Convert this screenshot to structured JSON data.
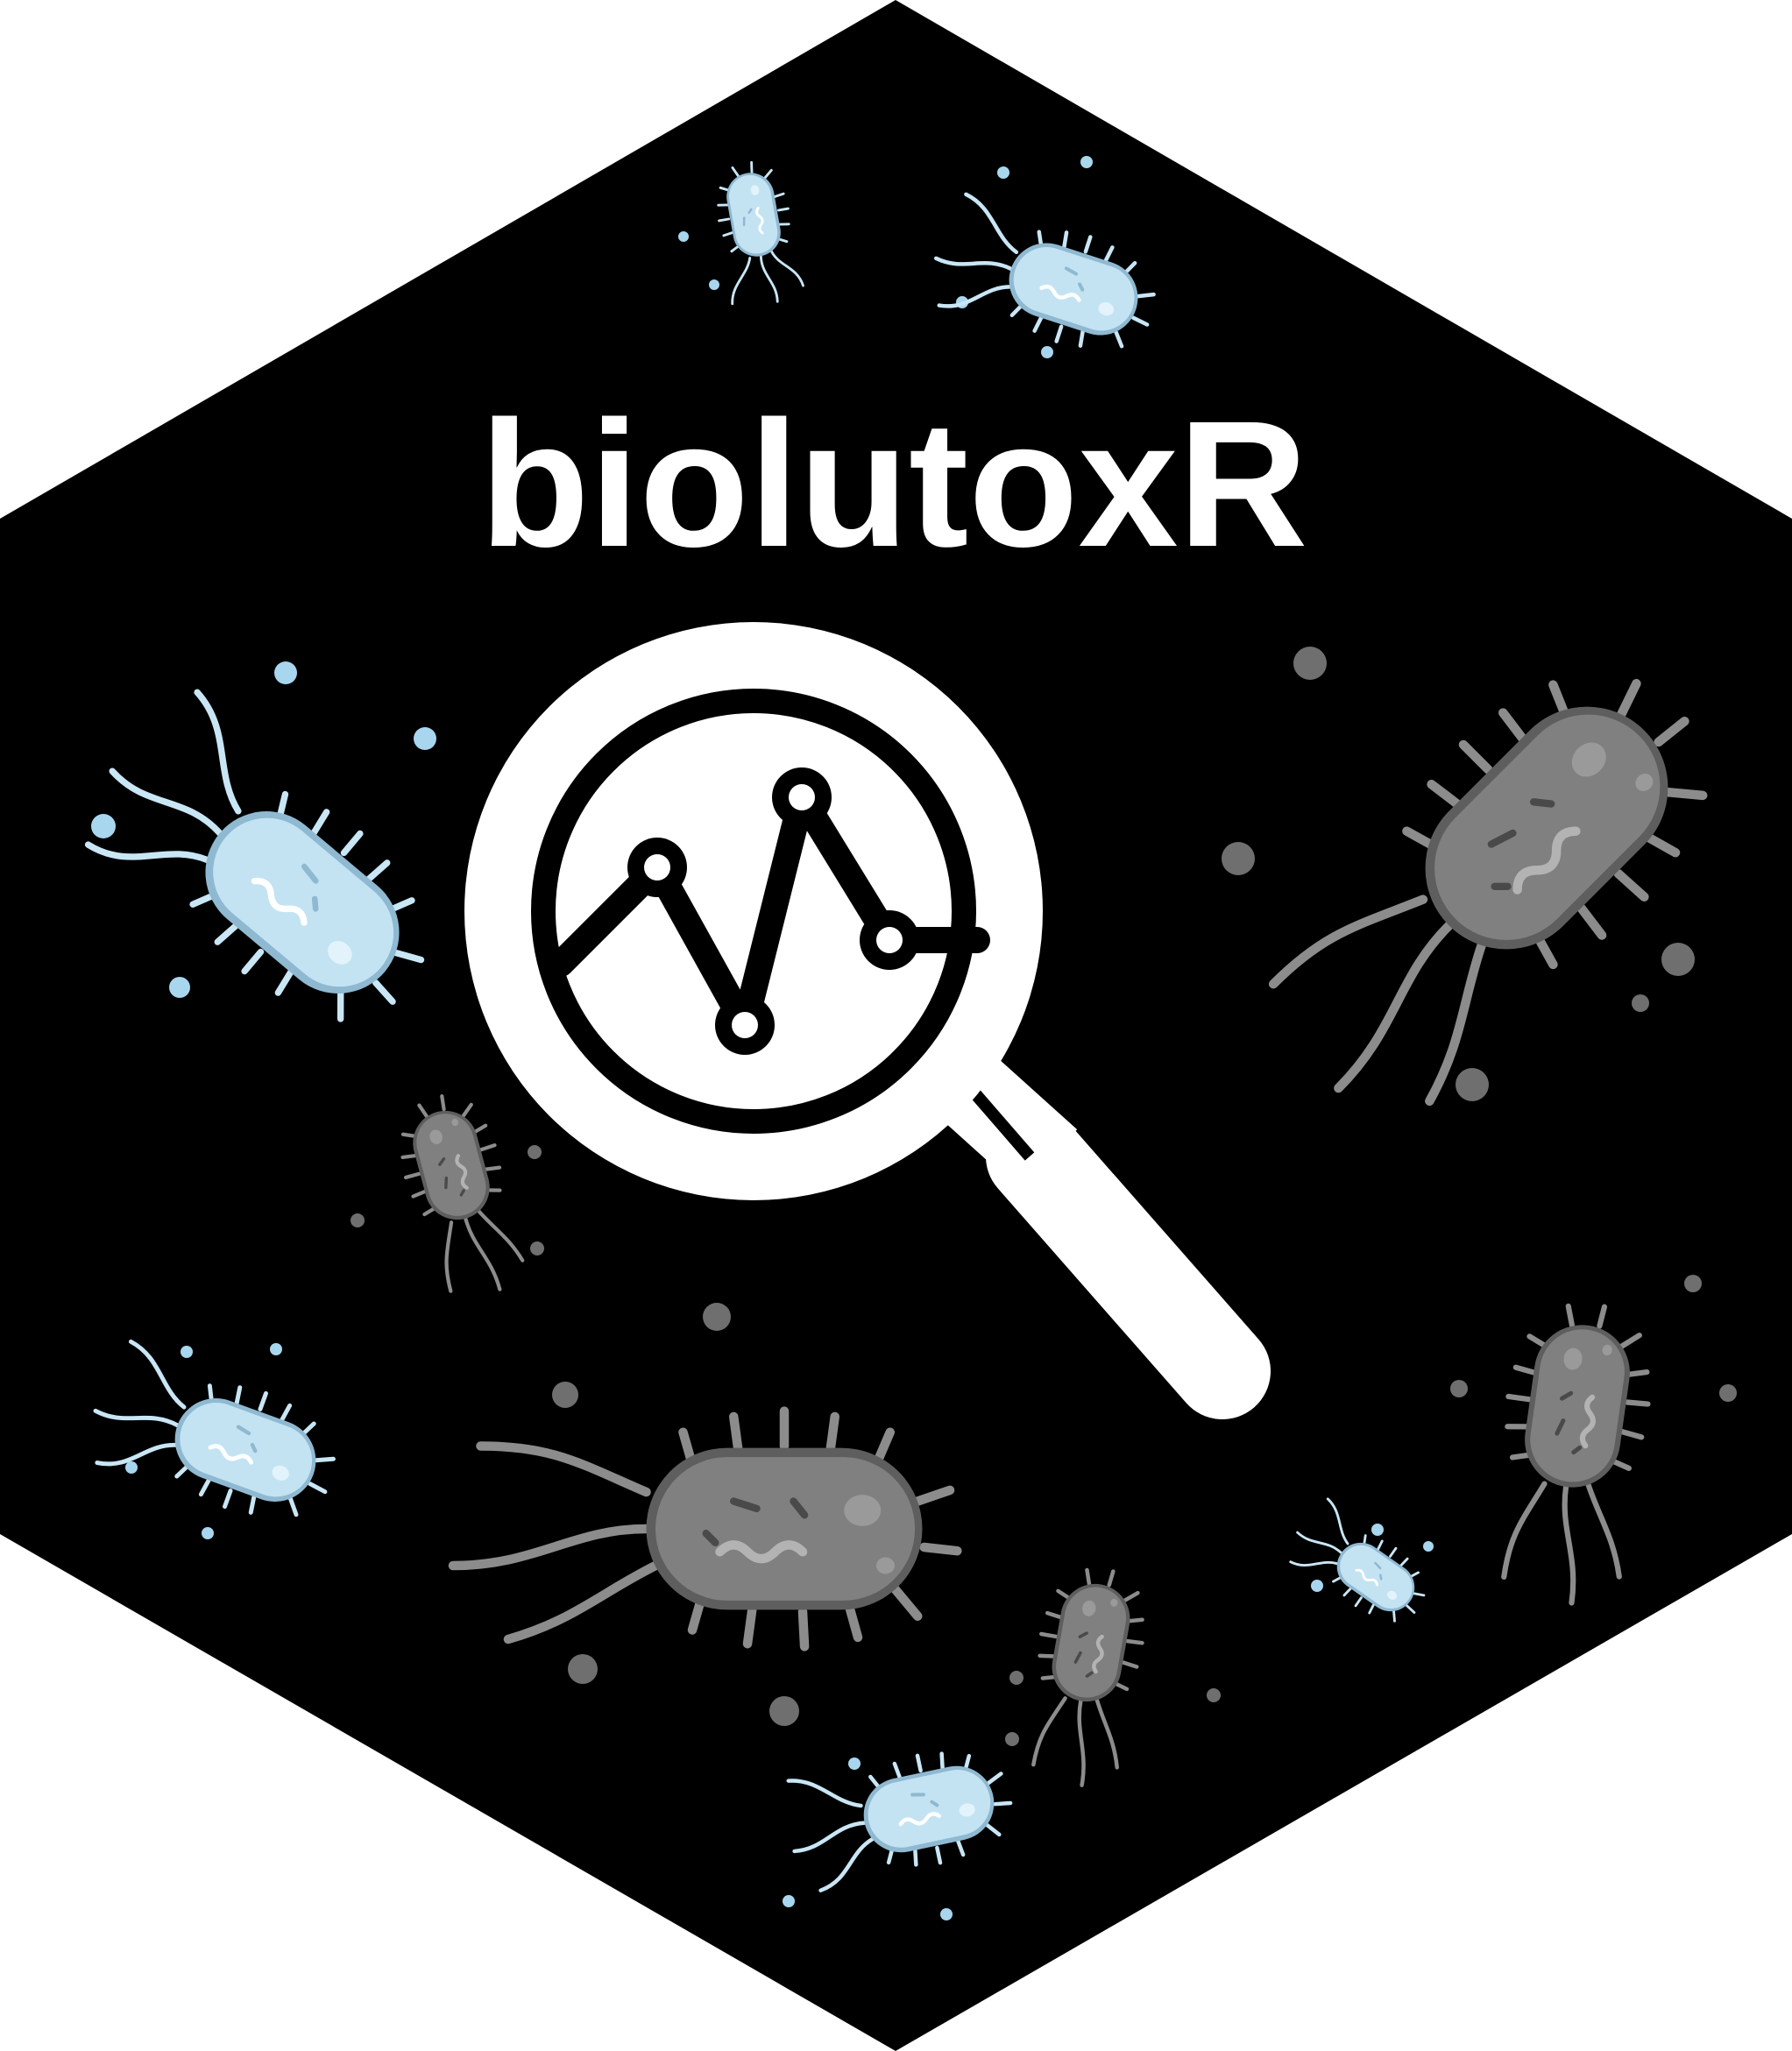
{
  "logo": {
    "title": "biolutoxR",
    "colors": {
      "hex_background": "#000000",
      "title_text": "#ffffff",
      "magnifier": "#ffffff",
      "chart_line": "#000000",
      "bacteria_blue_body": "#c3e3f3",
      "bacteria_blue_outline": "#8fb9d1",
      "bacteria_blue_flagella": "#c9e6f5",
      "bacteria_gray_body": "#808080",
      "bacteria_gray_outline": "#5e5e5e",
      "bacteria_gray_flagella": "#8c8c8c",
      "dots_blue": "#a8d6ee",
      "dots_gray": "#6f6f6f"
    },
    "icons": [
      "hexagon-background",
      "magnifying-glass-icon",
      "line-chart-icon",
      "bacterium-icon"
    ]
  }
}
